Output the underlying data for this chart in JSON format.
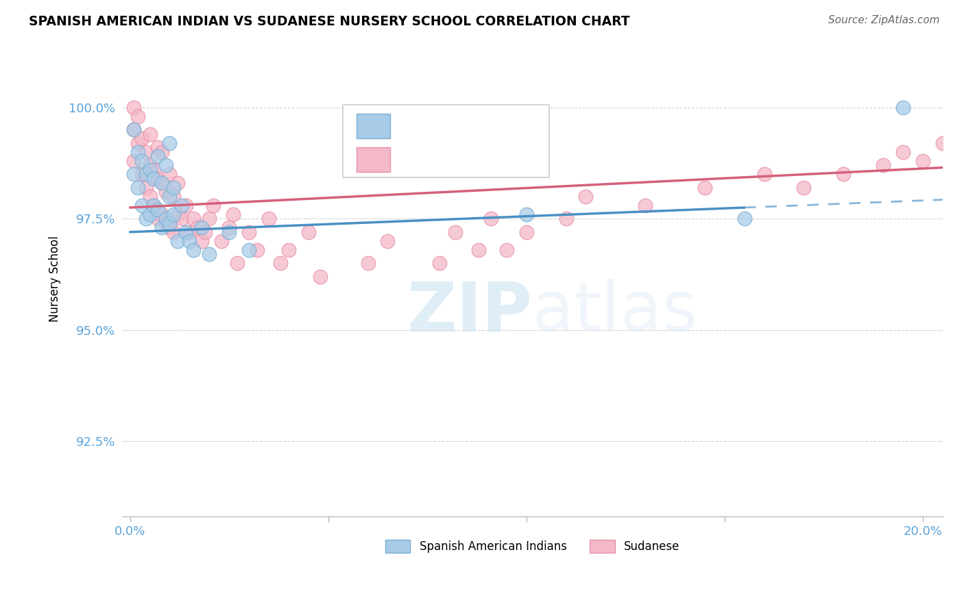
{
  "title": "SPANISH AMERICAN INDIAN VS SUDANESE NURSERY SCHOOL CORRELATION CHART",
  "source": "Source: ZipAtlas.com",
  "ylabel": "Nursery School",
  "watermark_zip": "ZIP",
  "watermark_atlas": "atlas",
  "legend_blue_label": "Spanish American Indians",
  "legend_pink_label": "Sudanese",
  "yticks": [
    92.5,
    95.0,
    97.5,
    100.0
  ],
  "ytick_labels": [
    "92.5%",
    "95.0%",
    "97.5%",
    "100.0%"
  ],
  "ylim": [
    90.8,
    101.5
  ],
  "xlim": [
    -0.002,
    0.205
  ],
  "blue_scatter_color": "#a8cce8",
  "blue_scatter_edge": "#7bafd4",
  "pink_scatter_color": "#f4b8c8",
  "pink_scatter_edge": "#e890a8",
  "blue_line_color": "#4a90c4",
  "pink_line_color": "#d4607a",
  "axis_tick_color": "#5ba3d9",
  "grid_color": "#d0d0d0",
  "blue_points_x": [
    0.001,
    0.001,
    0.002,
    0.002,
    0.003,
    0.003,
    0.004,
    0.004,
    0.005,
    0.005,
    0.006,
    0.006,
    0.007,
    0.007,
    0.008,
    0.008,
    0.009,
    0.009,
    0.01,
    0.01,
    0.01,
    0.011,
    0.011,
    0.012,
    0.013,
    0.014,
    0.015,
    0.016,
    0.018,
    0.02,
    0.025,
    0.03,
    0.1,
    0.155,
    0.195
  ],
  "blue_points_y": [
    98.5,
    99.5,
    98.2,
    99.0,
    97.8,
    98.8,
    97.5,
    98.5,
    97.6,
    98.6,
    97.8,
    98.4,
    97.7,
    98.9,
    97.3,
    98.3,
    97.5,
    98.7,
    97.4,
    98.0,
    99.2,
    97.6,
    98.2,
    97.0,
    97.8,
    97.2,
    97.0,
    96.8,
    97.3,
    96.7,
    97.2,
    96.8,
    97.6,
    97.5,
    100.0
  ],
  "blue_line_x_end": 0.155,
  "pink_points_x": [
    0.001,
    0.001,
    0.001,
    0.002,
    0.002,
    0.003,
    0.003,
    0.004,
    0.004,
    0.005,
    0.005,
    0.005,
    0.006,
    0.006,
    0.007,
    0.007,
    0.007,
    0.008,
    0.008,
    0.008,
    0.009,
    0.009,
    0.01,
    0.01,
    0.011,
    0.011,
    0.012,
    0.012,
    0.013,
    0.014,
    0.015,
    0.016,
    0.017,
    0.018,
    0.019,
    0.02,
    0.021,
    0.023,
    0.025,
    0.026,
    0.027,
    0.03,
    0.032,
    0.035,
    0.038,
    0.04,
    0.045,
    0.048,
    0.06,
    0.065,
    0.078,
    0.082,
    0.088,
    0.091,
    0.095,
    0.1,
    0.11,
    0.115,
    0.13,
    0.145,
    0.16,
    0.17,
    0.18,
    0.19,
    0.195,
    0.2,
    0.205
  ],
  "pink_points_y": [
    98.8,
    99.5,
    100.0,
    99.2,
    99.8,
    98.5,
    99.3,
    98.2,
    99.0,
    98.0,
    98.7,
    99.4,
    97.8,
    98.6,
    97.5,
    98.4,
    99.1,
    97.6,
    98.3,
    99.0,
    97.4,
    98.1,
    97.3,
    98.5,
    97.2,
    98.0,
    97.6,
    98.3,
    97.5,
    97.8,
    97.2,
    97.5,
    97.3,
    97.0,
    97.2,
    97.5,
    97.8,
    97.0,
    97.3,
    97.6,
    96.5,
    97.2,
    96.8,
    97.5,
    96.5,
    96.8,
    97.2,
    96.2,
    96.5,
    97.0,
    96.5,
    97.2,
    96.8,
    97.5,
    96.8,
    97.2,
    97.5,
    98.0,
    97.8,
    98.2,
    98.5,
    98.2,
    98.5,
    98.7,
    99.0,
    98.8,
    99.2
  ]
}
